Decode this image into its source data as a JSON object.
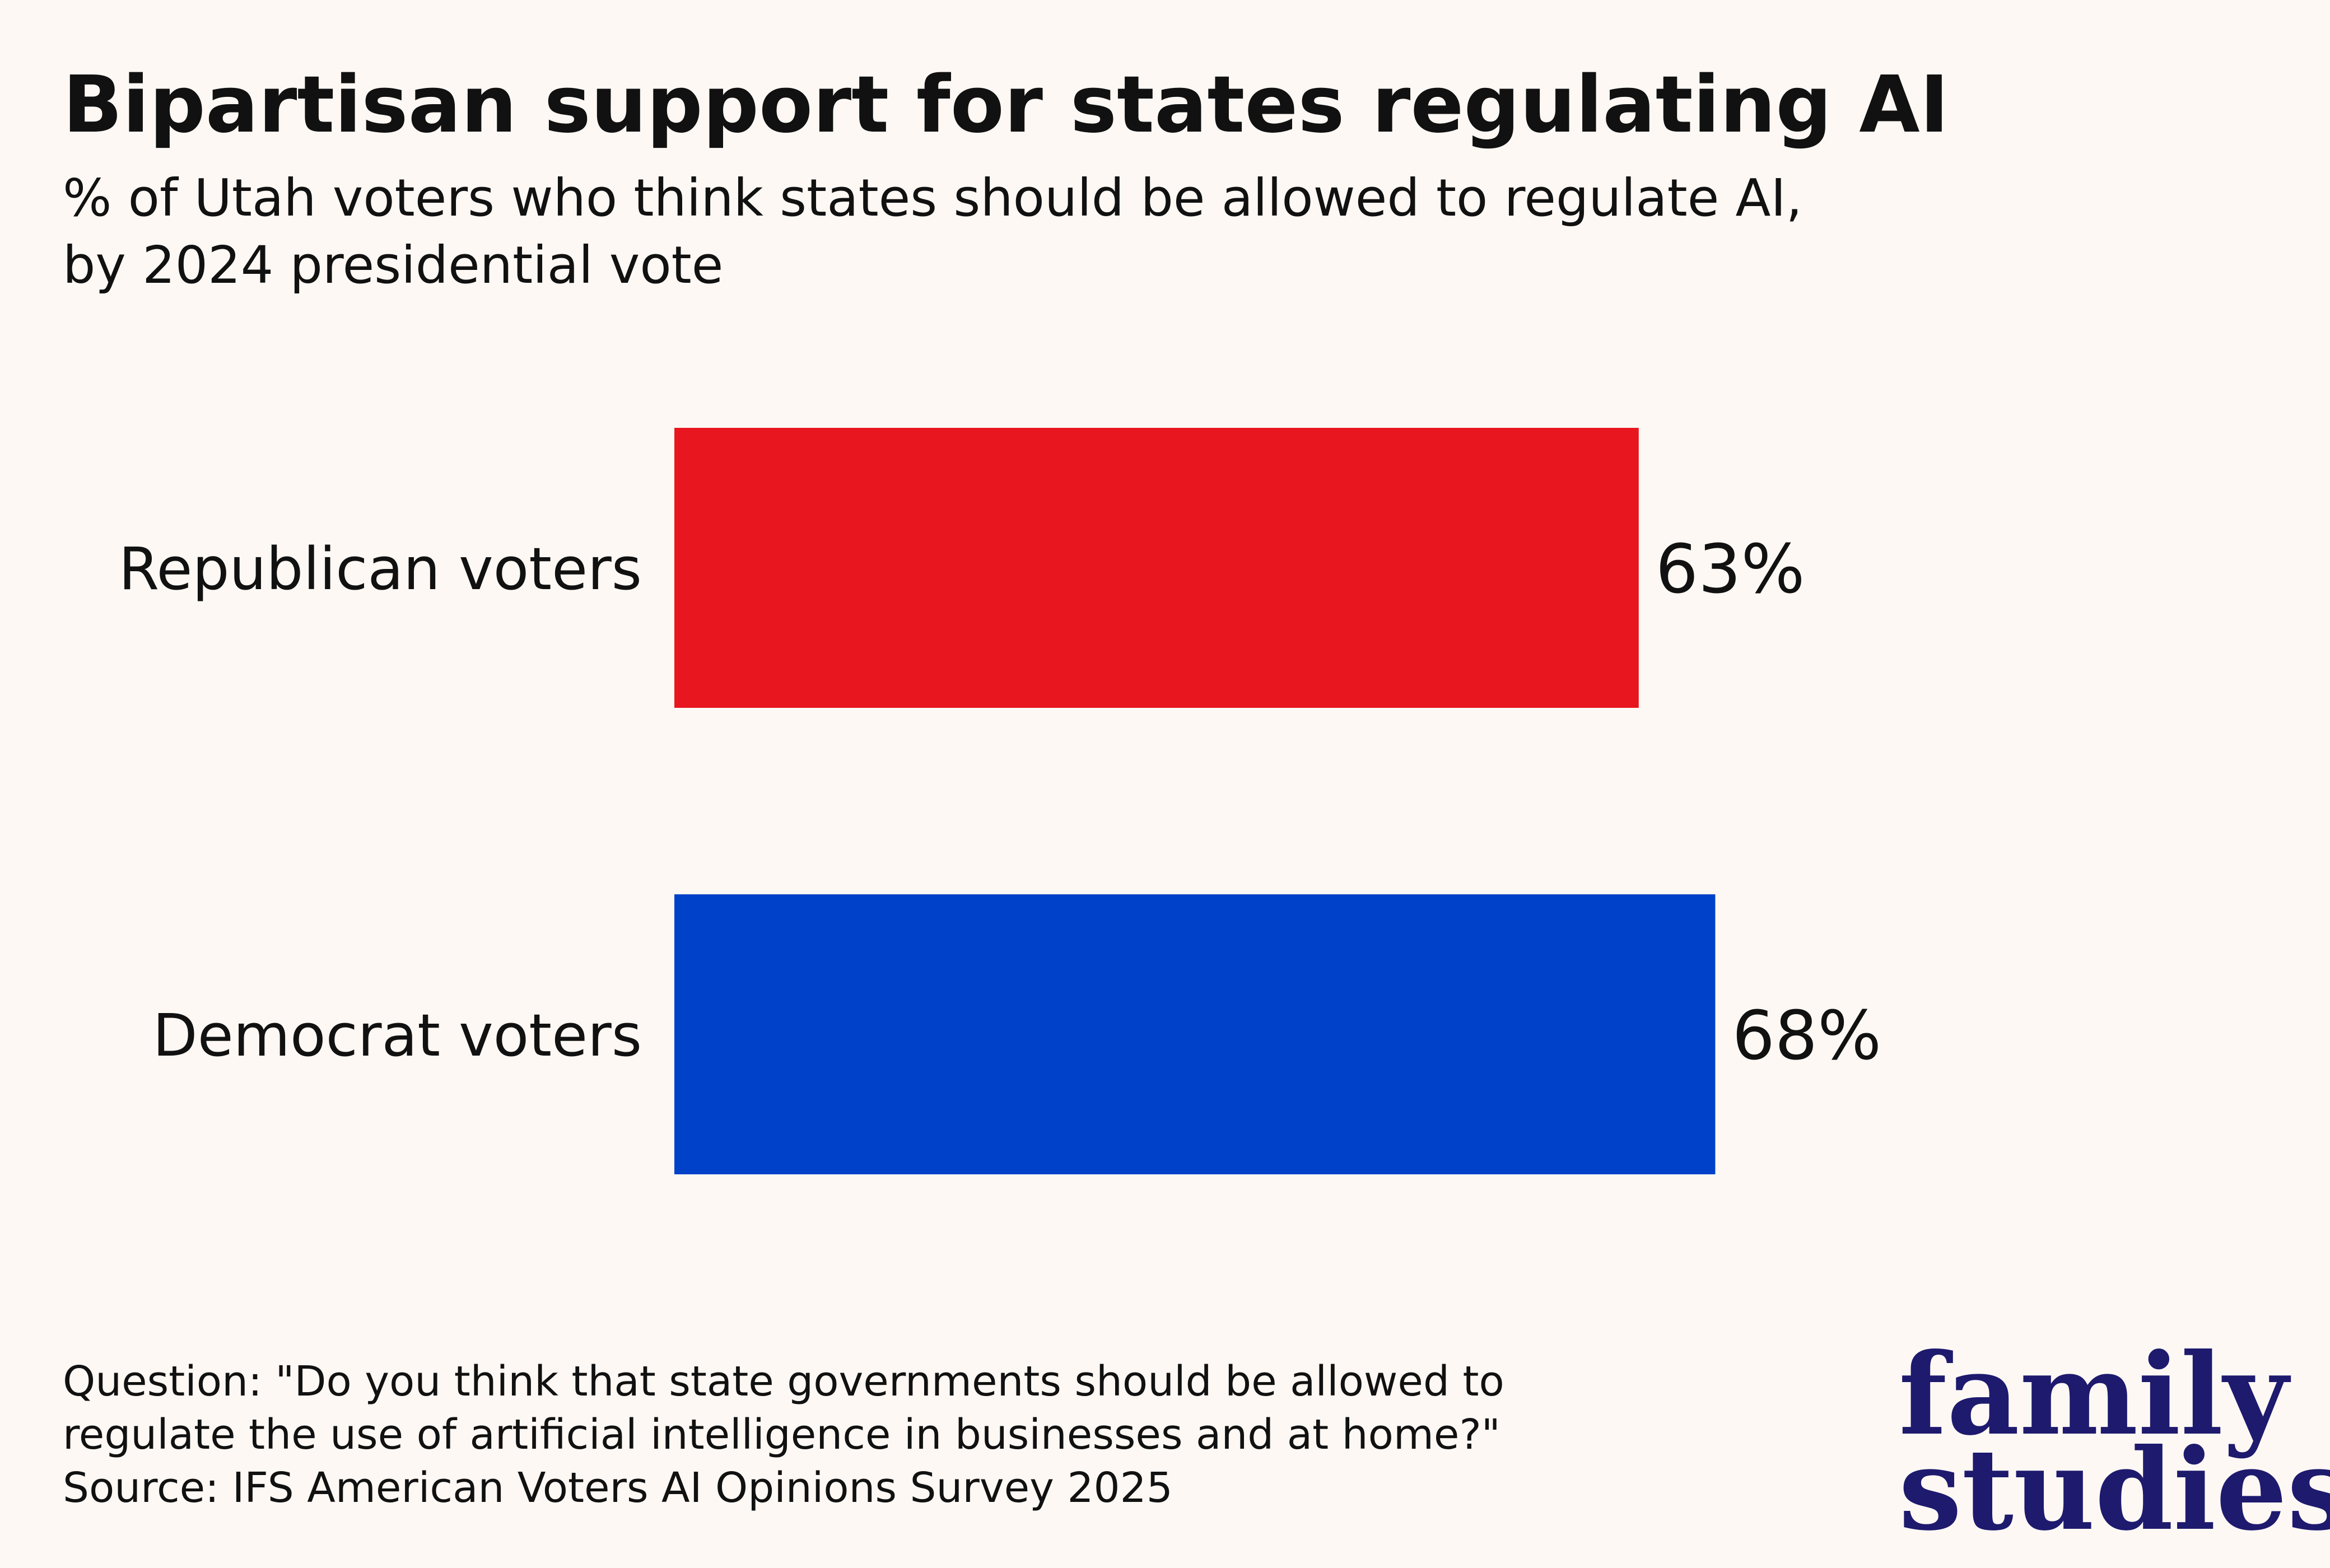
{
  "chart_data": {
    "type": "bar",
    "orientation": "horizontal",
    "title": "Bipartisan support for states regulating AI",
    "subtitle": [
      "% of Utah voters who think states should be allowed to regulate AI,",
      "by 2024 presidential vote"
    ],
    "categories": [
      "Republican voters",
      "Democrat voters"
    ],
    "values": [
      63,
      68
    ],
    "value_labels": [
      "63%",
      "68%"
    ],
    "colors": [
      "#e8161f",
      "#0041c9"
    ],
    "footnote": [
      "Question: \"Do you think that state governments should be allowed to",
      "regulate the use of artificial intelligence in businesses and at home?\"",
      "Source: IFS American Voters AI Opinions Survey 2025"
    ],
    "logo": [
      "family",
      "studies"
    ]
  }
}
